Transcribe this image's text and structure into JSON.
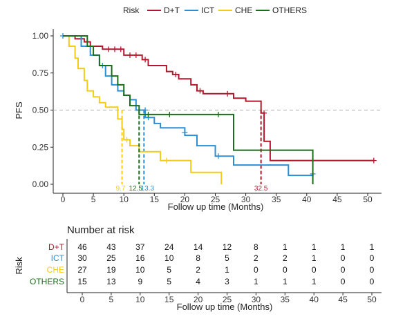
{
  "chart_data": {
    "type": "line",
    "subtype": "kaplan-meier",
    "legend": {
      "title": "Risk",
      "position": "top",
      "entries": [
        "D+T",
        "ICT",
        "CHE",
        "OTHERS"
      ]
    },
    "xlabel": "Follow up time (Months)",
    "ylabel": "PFS",
    "xlim": [
      0,
      52
    ],
    "ylim": [
      0,
      1.0
    ],
    "xticks": [
      0,
      5,
      10,
      15,
      20,
      25,
      30,
      35,
      40,
      45,
      50
    ],
    "yticks": [
      "0.00",
      "0.25",
      "0.50",
      "0.75",
      "1.00"
    ],
    "reference_line_y": 0.5,
    "series": [
      {
        "name": "D+T",
        "color": "#b2182b",
        "steps": [
          [
            0,
            1.0
          ],
          [
            2,
            1.0
          ],
          [
            2,
            0.98
          ],
          [
            3.5,
            0.98
          ],
          [
            3.5,
            0.96
          ],
          [
            4.5,
            0.96
          ],
          [
            4.5,
            0.93
          ],
          [
            6.5,
            0.93
          ],
          [
            6.5,
            0.91
          ],
          [
            10,
            0.91
          ],
          [
            10,
            0.87
          ],
          [
            13,
            0.87
          ],
          [
            13,
            0.84
          ],
          [
            14,
            0.84
          ],
          [
            14,
            0.8
          ],
          [
            17,
            0.8
          ],
          [
            17,
            0.76
          ],
          [
            18,
            0.76
          ],
          [
            18,
            0.74
          ],
          [
            19,
            0.74
          ],
          [
            19,
            0.71
          ],
          [
            21,
            0.71
          ],
          [
            21,
            0.67
          ],
          [
            22,
            0.67
          ],
          [
            22,
            0.63
          ],
          [
            23,
            0.63
          ],
          [
            23,
            0.61
          ],
          [
            28,
            0.61
          ],
          [
            28,
            0.58
          ],
          [
            30,
            0.58
          ],
          [
            30,
            0.56
          ],
          [
            32.5,
            0.56
          ],
          [
            32.5,
            0.48
          ],
          [
            33,
            0.48
          ],
          [
            33,
            0.29
          ],
          [
            34,
            0.29
          ],
          [
            34,
            0.16
          ],
          [
            51,
            0.16
          ]
        ],
        "censors": [
          [
            7.5,
            0.91
          ],
          [
            8.5,
            0.91
          ],
          [
            9.5,
            0.91
          ],
          [
            11,
            0.87
          ],
          [
            12,
            0.87
          ],
          [
            13.5,
            0.84
          ],
          [
            18.5,
            0.74
          ],
          [
            22.5,
            0.63
          ],
          [
            27,
            0.61
          ],
          [
            33,
            0.48
          ],
          [
            51,
            0.16
          ]
        ],
        "median": 32.5,
        "median_label": "32.5"
      },
      {
        "name": "ICT",
        "color": "#2b8fd6",
        "steps": [
          [
            0,
            1.0
          ],
          [
            3,
            1.0
          ],
          [
            3,
            0.93
          ],
          [
            4.5,
            0.93
          ],
          [
            4.5,
            0.87
          ],
          [
            6,
            0.87
          ],
          [
            6,
            0.8
          ],
          [
            7,
            0.8
          ],
          [
            7,
            0.73
          ],
          [
            8,
            0.73
          ],
          [
            8,
            0.67
          ],
          [
            9,
            0.67
          ],
          [
            9,
            0.63
          ],
          [
            10,
            0.63
          ],
          [
            10,
            0.6
          ],
          [
            11,
            0.6
          ],
          [
            11,
            0.57
          ],
          [
            12,
            0.57
          ],
          [
            12,
            0.5
          ],
          [
            13.5,
            0.5
          ],
          [
            13.5,
            0.45
          ],
          [
            15,
            0.45
          ],
          [
            15,
            0.41
          ],
          [
            16,
            0.41
          ],
          [
            16,
            0.38
          ],
          [
            20,
            0.38
          ],
          [
            20,
            0.33
          ],
          [
            22,
            0.33
          ],
          [
            22,
            0.26
          ],
          [
            25,
            0.26
          ],
          [
            25,
            0.19
          ],
          [
            28,
            0.19
          ],
          [
            28,
            0.13
          ],
          [
            37,
            0.13
          ],
          [
            37,
            0.06
          ],
          [
            41,
            0.06
          ],
          [
            41,
            0.07
          ]
        ],
        "censors": [
          [
            0,
            1.0
          ],
          [
            6.5,
            0.8
          ],
          [
            13.5,
            0.5
          ],
          [
            14,
            0.45
          ],
          [
            20,
            0.35
          ],
          [
            25.5,
            0.19
          ],
          [
            41,
            0.07
          ]
        ],
        "median": 13.3,
        "median_label": "13.3"
      },
      {
        "name": "CHE",
        "color": "#f2cc17",
        "steps": [
          [
            0,
            1.0
          ],
          [
            1,
            1.0
          ],
          [
            1,
            0.93
          ],
          [
            2,
            0.93
          ],
          [
            2,
            0.85
          ],
          [
            2.5,
            0.85
          ],
          [
            2.5,
            0.78
          ],
          [
            3.5,
            0.78
          ],
          [
            3.5,
            0.7
          ],
          [
            4,
            0.7
          ],
          [
            4,
            0.63
          ],
          [
            5,
            0.63
          ],
          [
            5,
            0.59
          ],
          [
            6,
            0.59
          ],
          [
            6,
            0.55
          ],
          [
            7,
            0.55
          ],
          [
            7,
            0.52
          ],
          [
            9,
            0.52
          ],
          [
            9,
            0.44
          ],
          [
            9.7,
            0.44
          ],
          [
            9.7,
            0.37
          ],
          [
            10,
            0.37
          ],
          [
            10,
            0.3
          ],
          [
            11,
            0.3
          ],
          [
            11,
            0.26
          ],
          [
            12.5,
            0.26
          ],
          [
            12.5,
            0.22
          ],
          [
            16,
            0.22
          ],
          [
            16,
            0.16
          ],
          [
            21,
            0.16
          ],
          [
            21,
            0.08
          ],
          [
            26,
            0.08
          ],
          [
            26,
            0.0
          ]
        ],
        "censors": [
          [
            10.5,
            0.3
          ],
          [
            17,
            0.16
          ]
        ],
        "median": 9.7,
        "median_label": "9.7"
      },
      {
        "name": "OTHERS",
        "color": "#1a6e1a",
        "steps": [
          [
            0,
            1.0
          ],
          [
            4,
            1.0
          ],
          [
            4,
            0.93
          ],
          [
            5,
            0.93
          ],
          [
            5,
            0.87
          ],
          [
            6,
            0.87
          ],
          [
            6,
            0.8
          ],
          [
            8,
            0.8
          ],
          [
            8,
            0.73
          ],
          [
            9,
            0.73
          ],
          [
            9,
            0.67
          ],
          [
            10,
            0.67
          ],
          [
            10,
            0.6
          ],
          [
            11,
            0.6
          ],
          [
            11,
            0.53
          ],
          [
            12.5,
            0.53
          ],
          [
            12.5,
            0.47
          ],
          [
            28,
            0.47
          ],
          [
            28,
            0.23
          ],
          [
            41,
            0.23
          ],
          [
            41,
            0.0
          ]
        ],
        "censors": [
          [
            14,
            0.47
          ],
          [
            17.5,
            0.47
          ],
          [
            25.5,
            0.47
          ]
        ],
        "median": 12.5,
        "median_label": "12.5"
      }
    ],
    "risk_table": {
      "title": "Number at risk",
      "ylabel": "Risk",
      "xlabel": "Follow up time (Months)",
      "times": [
        0,
        5,
        10,
        15,
        20,
        25,
        30,
        35,
        40,
        45,
        50
      ],
      "rows": [
        {
          "label": "D+T",
          "color": "#b2182b",
          "values": [
            46,
            43,
            37,
            24,
            14,
            12,
            8,
            1,
            1,
            1,
            1
          ]
        },
        {
          "label": "ICT",
          "color": "#2b8fd6",
          "values": [
            30,
            25,
            16,
            10,
            8,
            5,
            2,
            2,
            1,
            0,
            0
          ]
        },
        {
          "label": "CHE",
          "color": "#f2cc17",
          "values": [
            27,
            19,
            10,
            5,
            2,
            1,
            0,
            0,
            0,
            0,
            0
          ]
        },
        {
          "label": "OTHERS",
          "color": "#1a6e1a",
          "values": [
            15,
            13,
            9,
            5,
            4,
            3,
            1,
            1,
            1,
            0,
            0
          ]
        }
      ]
    }
  }
}
